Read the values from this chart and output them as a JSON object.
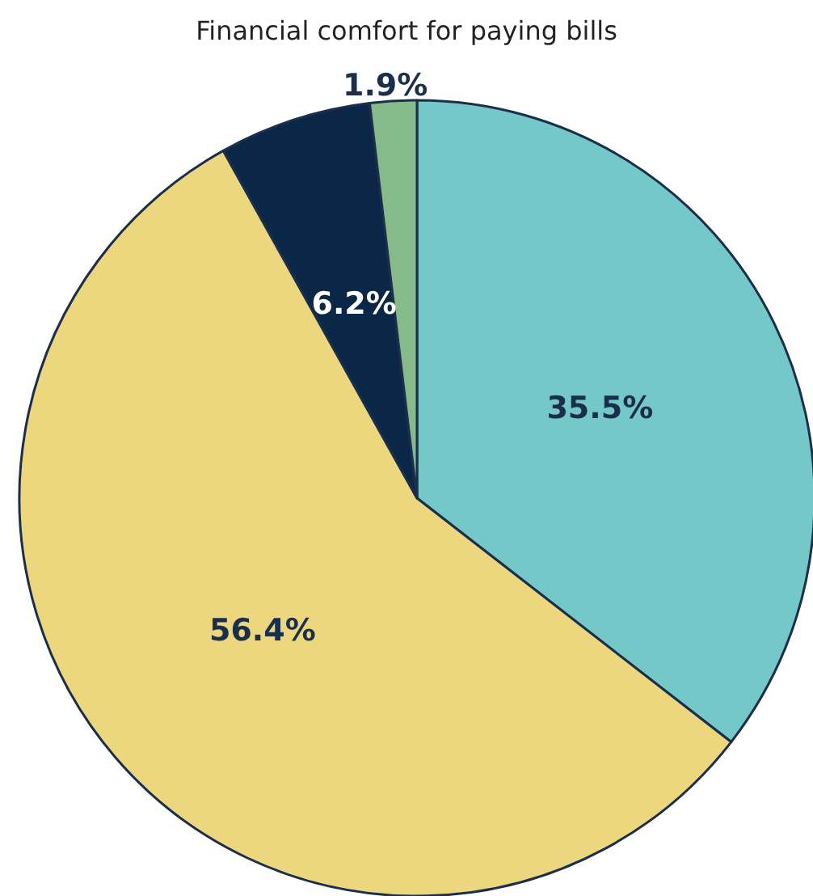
{
  "chart_data": {
    "type": "pie",
    "title": "Financial comfort for paying bills",
    "categories": [
      null,
      null,
      null,
      null
    ],
    "values": [
      35.5,
      56.4,
      6.2,
      1.9
    ],
    "colors": [
      "#74c8c8",
      "#ecd77e",
      "#0b2747",
      "#86ba8a"
    ],
    "value_labels": [
      "35.5%",
      "56.4%",
      "6.2%",
      "1.9%"
    ]
  }
}
